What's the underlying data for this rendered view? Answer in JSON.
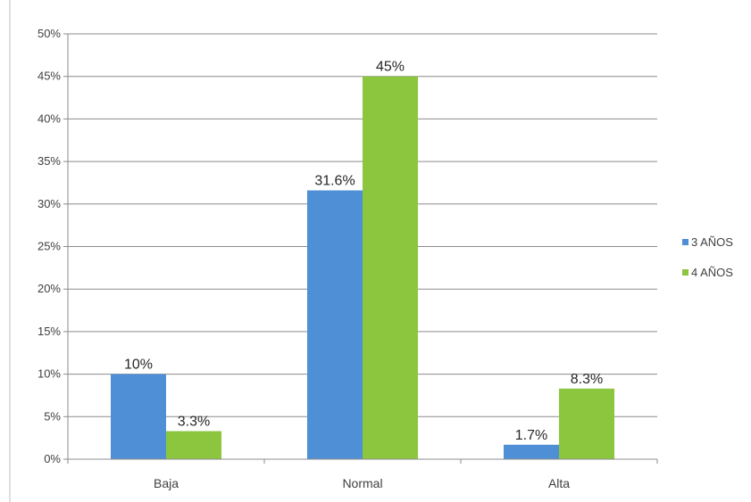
{
  "chart_data": {
    "type": "bar",
    "categories": [
      "Baja",
      "Normal",
      "Alta"
    ],
    "series": [
      {
        "name": "3 AÑOS",
        "values": [
          10,
          31.6,
          1.7
        ],
        "labels": [
          "10%",
          "31.6%",
          "1.7%"
        ],
        "color": "#4F8FD6"
      },
      {
        "name": "4 AÑOS",
        "values": [
          3.3,
          45,
          8.3
        ],
        "labels": [
          "3.3%",
          "45%",
          "8.3%"
        ],
        "color": "#8CC63F"
      }
    ],
    "ylim": [
      0,
      50
    ],
    "yticks": [
      0,
      5,
      10,
      15,
      20,
      25,
      30,
      35,
      40,
      45,
      50
    ],
    "ytick_labels": [
      "0%",
      "5%",
      "10%",
      "15%",
      "20%",
      "25%",
      "30%",
      "35%",
      "40%",
      "45%",
      "50%"
    ],
    "grid": true,
    "legend_position": "right"
  }
}
